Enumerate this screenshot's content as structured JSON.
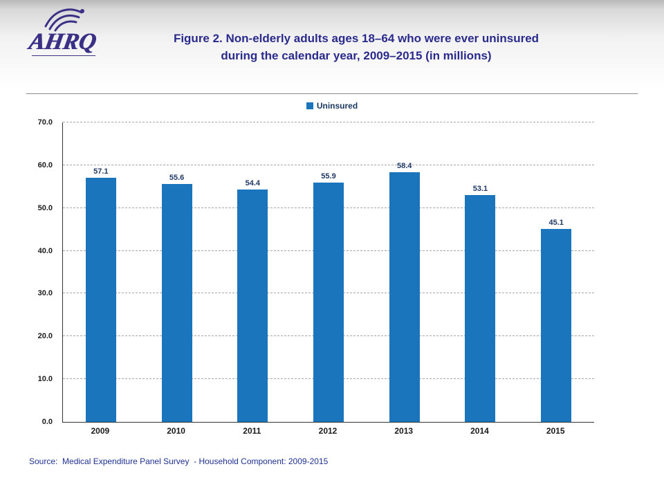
{
  "logo": {
    "org": "AHRQ"
  },
  "header": {
    "title_line1": "Figure 2. Non-elderly adults ages 18–64 who were ever uninsured",
    "title_line2": "during the calendar year, 2009–2015 (in millions)"
  },
  "legend": {
    "label": "Uninsured"
  },
  "chart_data": {
    "type": "bar",
    "title": "Figure 2. Non-elderly adults ages 18–64 who were ever uninsured during the calendar year, 2009–2015 (in millions)",
    "categories": [
      "2009",
      "2010",
      "2011",
      "2012",
      "2013",
      "2014",
      "2015"
    ],
    "series": [
      {
        "name": "Uninsured",
        "values": [
          57.1,
          55.6,
          54.4,
          55.9,
          58.4,
          53.1,
          45.1
        ]
      }
    ],
    "values": [
      57.1,
      55.6,
      54.4,
      55.9,
      58.4,
      53.1,
      45.1
    ],
    "xlabel": "",
    "ylabel": "",
    "ylim": [
      0,
      70
    ],
    "ytick_step": 10,
    "grid": true,
    "legend_position": "top",
    "bar_color": "#1B75BC"
  },
  "footer": {
    "source": "Source:  Medical Expenditure Panel Survey  - Household Component: 2009-2015"
  },
  "colors": {
    "bar": "#1B75BC",
    "title": "#2A2A8C",
    "logo": "#3A3186",
    "source_text": "#1F3191"
  }
}
